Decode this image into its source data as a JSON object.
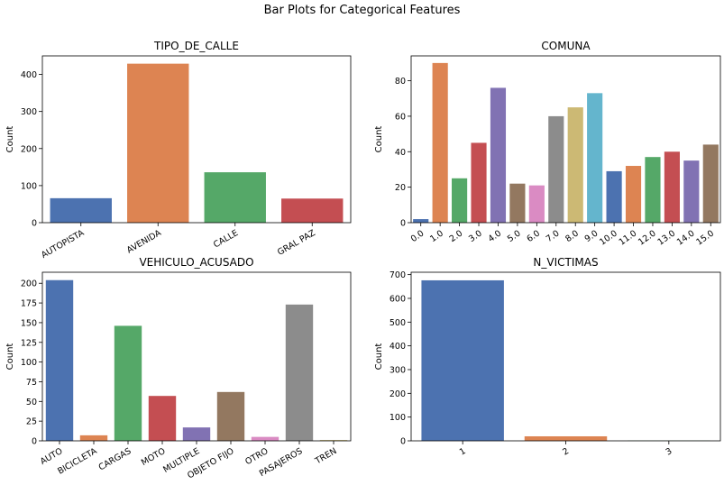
{
  "figure": {
    "suptitle": "Bar Plots for Categorical Features"
  },
  "chart_data": [
    {
      "type": "bar",
      "title": "TIPO_DE_CALLE",
      "xlabel": "",
      "ylabel": "Count",
      "categories": [
        "AUTOPISTA",
        "AVENIDA",
        "CALLE",
        "GRAL PAZ"
      ],
      "values": [
        66,
        429,
        136,
        65
      ],
      "ylim": [
        0,
        450
      ],
      "yticks": [
        0,
        100,
        200,
        300,
        400
      ],
      "colors": [
        "#4c72b0",
        "#dd8452",
        "#55a868",
        "#c44e52"
      ],
      "grid": false
    },
    {
      "type": "bar",
      "title": "COMUNA",
      "xlabel": "",
      "ylabel": "Count",
      "categories": [
        "0.0",
        "1.0",
        "2.0",
        "3.0",
        "4.0",
        "5.0",
        "6.0",
        "7.0",
        "8.0",
        "9.0",
        "10.0",
        "11.0",
        "12.0",
        "13.0",
        "14.0",
        "15.0"
      ],
      "values": [
        2,
        90,
        25,
        45,
        76,
        22,
        21,
        60,
        65,
        73,
        29,
        32,
        37,
        40,
        35,
        44
      ],
      "ylim": [
        0,
        94
      ],
      "yticks": [
        0,
        20,
        40,
        60,
        80
      ],
      "colors": [
        "#4c72b0",
        "#dd8452",
        "#55a868",
        "#c44e52",
        "#8172b3",
        "#937860",
        "#da8bc3",
        "#8c8c8c",
        "#ccb974",
        "#64b5cd",
        "#4c72b0",
        "#dd8452",
        "#55a868",
        "#c44e52",
        "#8172b3",
        "#937860"
      ],
      "grid": false
    },
    {
      "type": "bar",
      "title": "VEHICULO_ACUSADO",
      "xlabel": "",
      "ylabel": "Count",
      "categories": [
        "AUTO",
        "BICICLETA",
        "CARGAS",
        "MOTO",
        "MULTIPLE",
        "OBJETO FIJO",
        "OTRO",
        "PASAJEROS",
        "TREN"
      ],
      "values": [
        204,
        7,
        146,
        57,
        17,
        62,
        5,
        173,
        1
      ],
      "ylim": [
        0,
        214
      ],
      "yticks": [
        0,
        25,
        50,
        75,
        100,
        125,
        150,
        175,
        200
      ],
      "colors": [
        "#4c72b0",
        "#dd8452",
        "#55a868",
        "#c44e52",
        "#8172b3",
        "#937860",
        "#da8bc3",
        "#8c8c8c",
        "#ccb974"
      ],
      "grid": false
    },
    {
      "type": "bar",
      "title": "N_VICTIMAS",
      "xlabel": "",
      "ylabel": "Count",
      "categories": [
        "1",
        "2",
        "3"
      ],
      "values": [
        676,
        19,
        1
      ],
      "ylim": [
        0,
        710
      ],
      "yticks": [
        0,
        100,
        200,
        300,
        400,
        500,
        600,
        700
      ],
      "colors": [
        "#4c72b0",
        "#dd8452",
        "#55a868"
      ],
      "grid": false
    }
  ]
}
